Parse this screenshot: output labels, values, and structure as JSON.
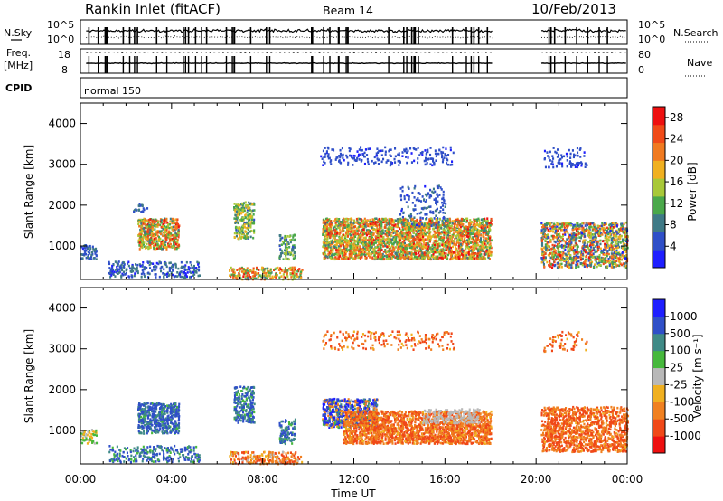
{
  "header": {
    "station": "Rankin Inlet (fitACF)",
    "beam": "Beam 14",
    "date": "10/Feb/2013"
  },
  "top_panels": {
    "nsky_label": "N.Sky",
    "nsearch_label": "N.Search",
    "freq_label_1": "Freq.",
    "freq_label_2": "[MHz]",
    "nave_label": "Nave",
    "cpid_label": "CPID",
    "cpid_value": "normal 150",
    "noise_ticks": [
      "10^5",
      "10^0"
    ],
    "freq_ticks": [
      "18",
      "8"
    ],
    "nave_ticks": [
      "80",
      "0"
    ]
  },
  "colors": {
    "power_scale": [
      "#1e1eff",
      "#2f4fc8",
      "#3f7a86",
      "#4aa84a",
      "#a8c838",
      "#f0b020",
      "#f07a20",
      "#f04a18",
      "#ee1010"
    ],
    "velocity_scale": [
      "#1e1eff",
      "#2f4fc8",
      "#3f8a86",
      "#46b83c",
      "#b8b8b8",
      "#f0b020",
      "#f08020",
      "#f04818",
      "#ee1010"
    ]
  },
  "chart_data": [
    {
      "type": "heatmap",
      "title": "",
      "xlabel": "",
      "ylabel": "Slant Range [km]",
      "x_ticks": [
        "00:00",
        "04:00",
        "08:00",
        "12:00",
        "16:00",
        "20:00",
        "00:00"
      ],
      "xlim": [
        0,
        24
      ],
      "y_ticks": [
        "1000",
        "2000",
        "3000",
        "4000"
      ],
      "ylim": [
        180,
        4500
      ],
      "colorbar": {
        "label": "Power [dB]",
        "ticks": [
          "4",
          "8",
          "12",
          "16",
          "20",
          "24",
          "28"
        ],
        "range": [
          0,
          30
        ]
      },
      "blobs": [
        {
          "t0": 0.0,
          "t1": 0.7,
          "r0": 700,
          "r1": 1050,
          "d": 0.5,
          "v0": 3,
          "v1": 9
        },
        {
          "t0": 1.2,
          "t1": 5.2,
          "r0": 250,
          "r1": 650,
          "d": 0.35,
          "v0": 2,
          "v1": 10
        },
        {
          "t0": 2.5,
          "t1": 4.3,
          "r0": 950,
          "r1": 1700,
          "d": 0.8,
          "v0": 8,
          "v1": 28
        },
        {
          "t0": 2.3,
          "t1": 2.9,
          "r0": 1850,
          "r1": 2050,
          "d": 0.4,
          "v0": 4,
          "v1": 10
        },
        {
          "t0": 6.7,
          "t1": 7.6,
          "r0": 1200,
          "r1": 2100,
          "d": 0.6,
          "v0": 6,
          "v1": 20
        },
        {
          "t0": 6.5,
          "t1": 9.7,
          "r0": 180,
          "r1": 500,
          "d": 0.5,
          "v0": 8,
          "v1": 28
        },
        {
          "t0": 8.7,
          "t1": 9.4,
          "r0": 700,
          "r1": 1300,
          "d": 0.5,
          "v0": 6,
          "v1": 16
        },
        {
          "t0": 10.6,
          "t1": 18.0,
          "r0": 700,
          "r1": 1700,
          "d": 0.85,
          "v0": 8,
          "v1": 28
        },
        {
          "t0": 10.5,
          "t1": 16.4,
          "r0": 3000,
          "r1": 3450,
          "d": 0.18,
          "v0": 3,
          "v1": 6
        },
        {
          "t0": 14.0,
          "t1": 16.0,
          "r0": 1500,
          "r1": 2500,
          "d": 0.15,
          "v0": 3,
          "v1": 8
        },
        {
          "t0": 20.2,
          "t1": 24.0,
          "r0": 500,
          "r1": 1600,
          "d": 0.6,
          "v0": 3,
          "v1": 28
        },
        {
          "t0": 20.3,
          "t1": 22.2,
          "r0": 2950,
          "r1": 3450,
          "d": 0.18,
          "v0": 3,
          "v1": 6
        }
      ]
    },
    {
      "type": "heatmap",
      "title": "",
      "xlabel": "Time UT",
      "ylabel": "Slant Range [km]",
      "x_ticks": [
        "00:00",
        "04:00",
        "08:00",
        "12:00",
        "16:00",
        "20:00",
        "00:00"
      ],
      "xlim": [
        0,
        24
      ],
      "y_ticks": [
        "1000",
        "2000",
        "3000",
        "4000"
      ],
      "ylim": [
        180,
        4500
      ],
      "colorbar": {
        "label": "Velocity [m s⁻¹]",
        "ticks": [
          "1000",
          "500",
          "100",
          "25",
          "-25",
          "-100",
          "-500",
          "-1000"
        ],
        "range": [
          -1000,
          1000
        ]
      },
      "blobs": [
        {
          "t0": 0.0,
          "t1": 0.7,
          "r0": 700,
          "r1": 1050,
          "d": 0.5,
          "v0": -100,
          "v1": 100
        },
        {
          "t0": 1.2,
          "t1": 5.2,
          "r0": 250,
          "r1": 650,
          "d": 0.35,
          "v0": 25,
          "v1": 500
        },
        {
          "t0": 2.5,
          "t1": 4.3,
          "r0": 950,
          "r1": 1700,
          "d": 0.8,
          "v0": 80,
          "v1": 500
        },
        {
          "t0": 6.7,
          "t1": 7.6,
          "r0": 1200,
          "r1": 2100,
          "d": 0.6,
          "v0": 50,
          "v1": 500
        },
        {
          "t0": 6.5,
          "t1": 9.7,
          "r0": 180,
          "r1": 500,
          "d": 0.5,
          "v0": -500,
          "v1": 25
        },
        {
          "t0": 8.7,
          "t1": 9.4,
          "r0": 700,
          "r1": 1300,
          "d": 0.5,
          "v0": 25,
          "v1": 400
        },
        {
          "t0": 10.6,
          "t1": 13.0,
          "r0": 1100,
          "r1": 1800,
          "d": 0.8,
          "v0": -300,
          "v1": 900
        },
        {
          "t0": 11.5,
          "t1": 18.0,
          "r0": 700,
          "r1": 1500,
          "d": 0.85,
          "v0": -500,
          "v1": -60
        },
        {
          "t0": 15.0,
          "t1": 17.5,
          "r0": 1200,
          "r1": 1550,
          "d": 0.4,
          "v0": -20,
          "v1": 20
        },
        {
          "t0": 10.5,
          "t1": 16.4,
          "r0": 3000,
          "r1": 3450,
          "d": 0.15,
          "v0": -500,
          "v1": -30
        },
        {
          "t0": 20.2,
          "t1": 24.0,
          "r0": 500,
          "r1": 1600,
          "d": 0.6,
          "v0": -500,
          "v1": -80
        },
        {
          "t0": 20.3,
          "t1": 22.2,
          "r0": 2950,
          "r1": 3450,
          "d": 0.15,
          "v0": -500,
          "v1": -30
        }
      ]
    }
  ]
}
